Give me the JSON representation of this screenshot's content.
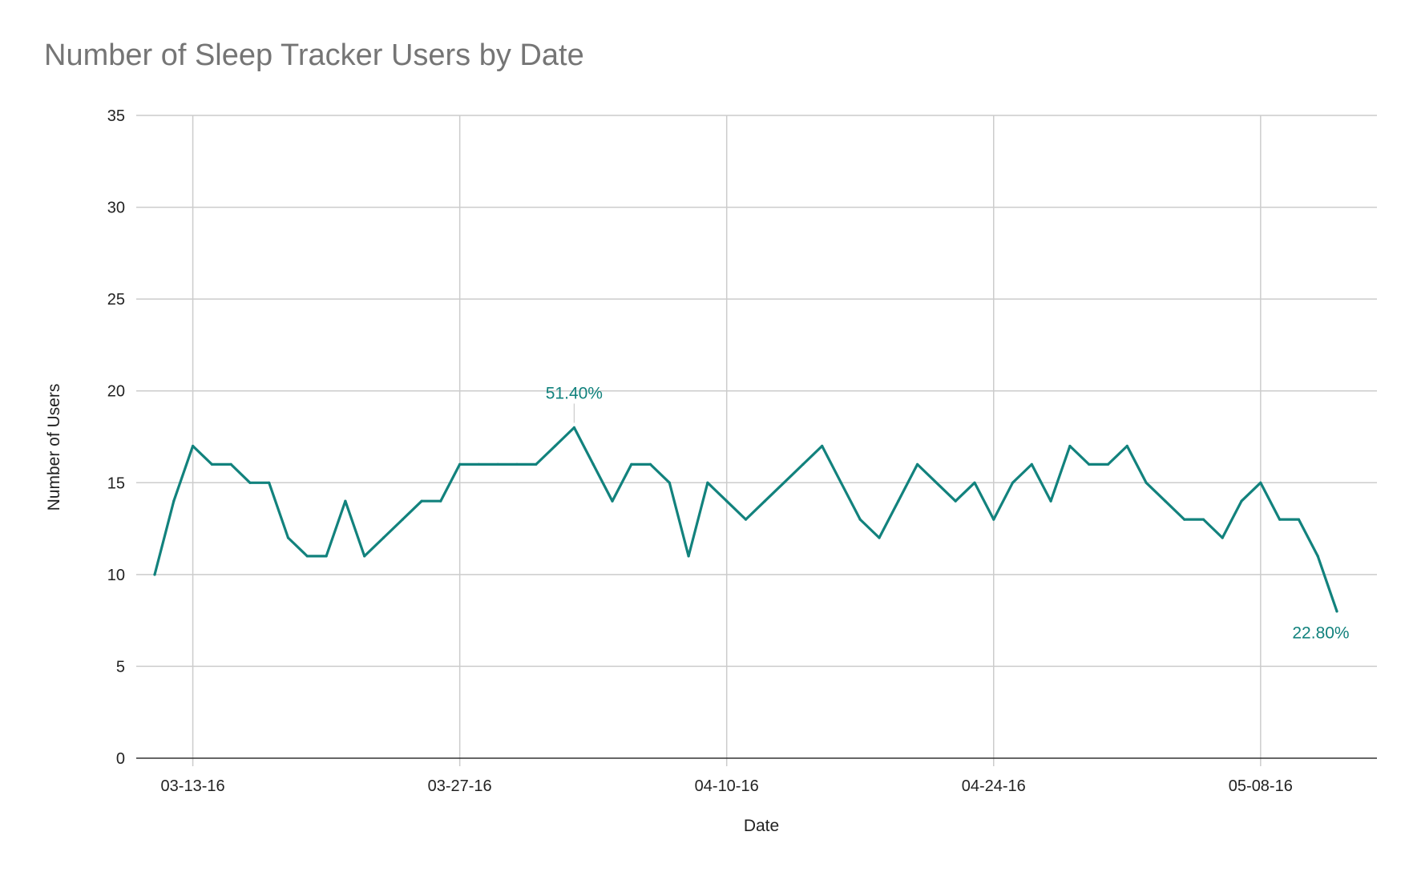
{
  "chart_data": {
    "type": "line",
    "title": "Number of Sleep Tracker Users by Date",
    "xlabel": "Date",
    "ylabel": "Number of Users",
    "ylim": [
      0,
      35
    ],
    "y_ticks": [
      "0",
      "5",
      "10",
      "15",
      "20",
      "25",
      "30",
      "35"
    ],
    "x_start": "2016-03-11",
    "x_ticks": [
      {
        "date": "2016-03-13",
        "label": "03-13-16"
      },
      {
        "date": "2016-03-27",
        "label": "03-27-16"
      },
      {
        "date": "2016-04-10",
        "label": "04-10-16"
      },
      {
        "date": "2016-04-24",
        "label": "04-24-16"
      },
      {
        "date": "2016-05-08",
        "label": "05-08-16"
      }
    ],
    "grid": true,
    "legend": "none",
    "line_color": "#12827d",
    "series": [
      {
        "values": [
          10,
          14,
          17,
          16,
          16,
          15,
          15,
          12,
          11,
          11,
          14,
          11,
          12,
          13,
          14,
          14,
          16,
          16,
          16,
          16,
          16,
          17,
          18,
          16,
          14,
          16,
          16,
          15,
          11,
          15,
          14,
          13,
          14,
          15,
          16,
          17,
          15,
          13,
          12,
          14,
          16,
          15,
          14,
          15,
          13,
          15,
          16,
          14,
          17,
          16,
          16,
          17,
          15,
          14,
          13,
          13,
          12,
          14,
          15,
          13,
          13,
          11,
          8
        ]
      }
    ],
    "annotations": [
      {
        "index": 22,
        "text": "51.40%"
      },
      {
        "index": 62,
        "text": "22.80%"
      }
    ]
  }
}
